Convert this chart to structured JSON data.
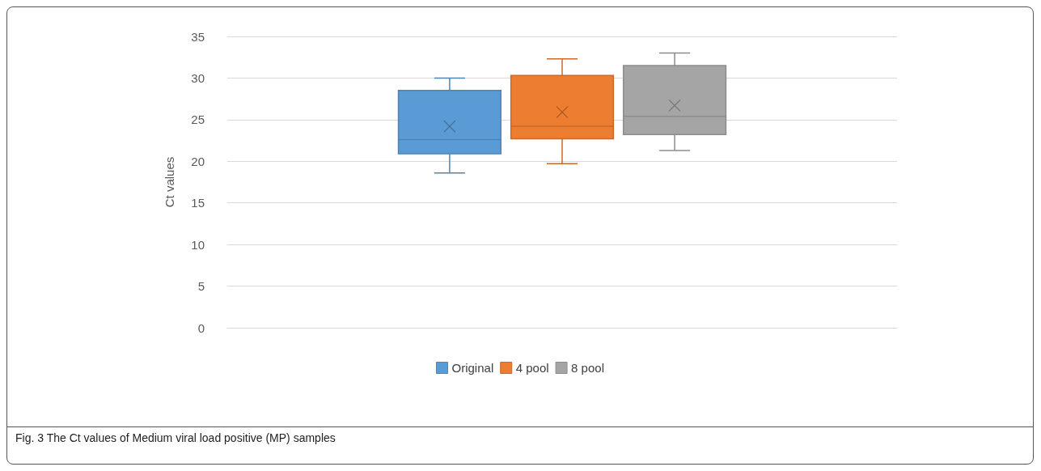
{
  "chart_data": {
    "type": "box",
    "ylabel": "Ct values",
    "categories": [
      null
    ],
    "series": [
      {
        "name": "Original",
        "color": "#5b9bd5",
        "boxes": [
          {
            "low": 18.6,
            "q1": 20.9,
            "median": 22.6,
            "q3": 28.5,
            "high": 30,
            "mean": 24.2
          }
        ]
      },
      {
        "name": "4 pool",
        "color": "#ed7d31",
        "boxes": [
          {
            "low": 19.7,
            "q1": 22.7,
            "median": 24.2,
            "q3": 30.3,
            "high": 32.3,
            "mean": 25.9
          }
        ]
      },
      {
        "name": "8 pool",
        "color": "#a5a5a5",
        "boxes": [
          {
            "low": 21.3,
            "q1": 23.2,
            "median": 25.4,
            "q3": 31.5,
            "high": 33,
            "mean": 26.7
          }
        ]
      }
    ],
    "ylim": [
      0,
      35
    ],
    "yticks": [
      0,
      5,
      10,
      15,
      20,
      25,
      30,
      35
    ],
    "grid": "y",
    "legend": "bottom",
    "annotations": [
      "Fig. 3 The Ct values of Medium viral load positive (MP) samples"
    ]
  }
}
